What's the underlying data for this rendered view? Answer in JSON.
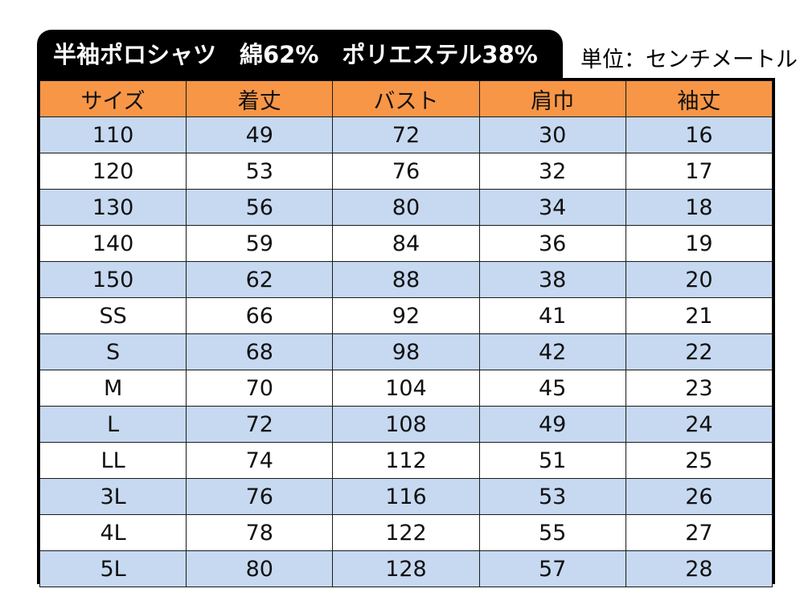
{
  "title": "半袖ポロシャツ　綿62%　ポリエステル38%",
  "unit": "単位：センチメートル",
  "colors": {
    "header_bg": "#f79646",
    "row_blue": "#c6d9f1",
    "row_white": "#ffffff",
    "title_bg": "#000000"
  },
  "table": {
    "headers": [
      "サイズ",
      "着丈",
      "バスト",
      "肩巾",
      "袖丈"
    ],
    "rows": [
      [
        "110",
        "49",
        "72",
        "30",
        "16"
      ],
      [
        "120",
        "53",
        "76",
        "32",
        "17"
      ],
      [
        "130",
        "56",
        "80",
        "34",
        "18"
      ],
      [
        "140",
        "59",
        "84",
        "36",
        "19"
      ],
      [
        "150",
        "62",
        "88",
        "38",
        "20"
      ],
      [
        "SS",
        "66",
        "92",
        "41",
        "21"
      ],
      [
        "S",
        "68",
        "98",
        "42",
        "22"
      ],
      [
        "M",
        "70",
        "104",
        "45",
        "23"
      ],
      [
        "L",
        "72",
        "108",
        "49",
        "24"
      ],
      [
        "LL",
        "74",
        "112",
        "51",
        "25"
      ],
      [
        "3L",
        "76",
        "116",
        "53",
        "26"
      ],
      [
        "4L",
        "78",
        "122",
        "55",
        "27"
      ],
      [
        "5L",
        "80",
        "128",
        "57",
        "28"
      ]
    ]
  }
}
